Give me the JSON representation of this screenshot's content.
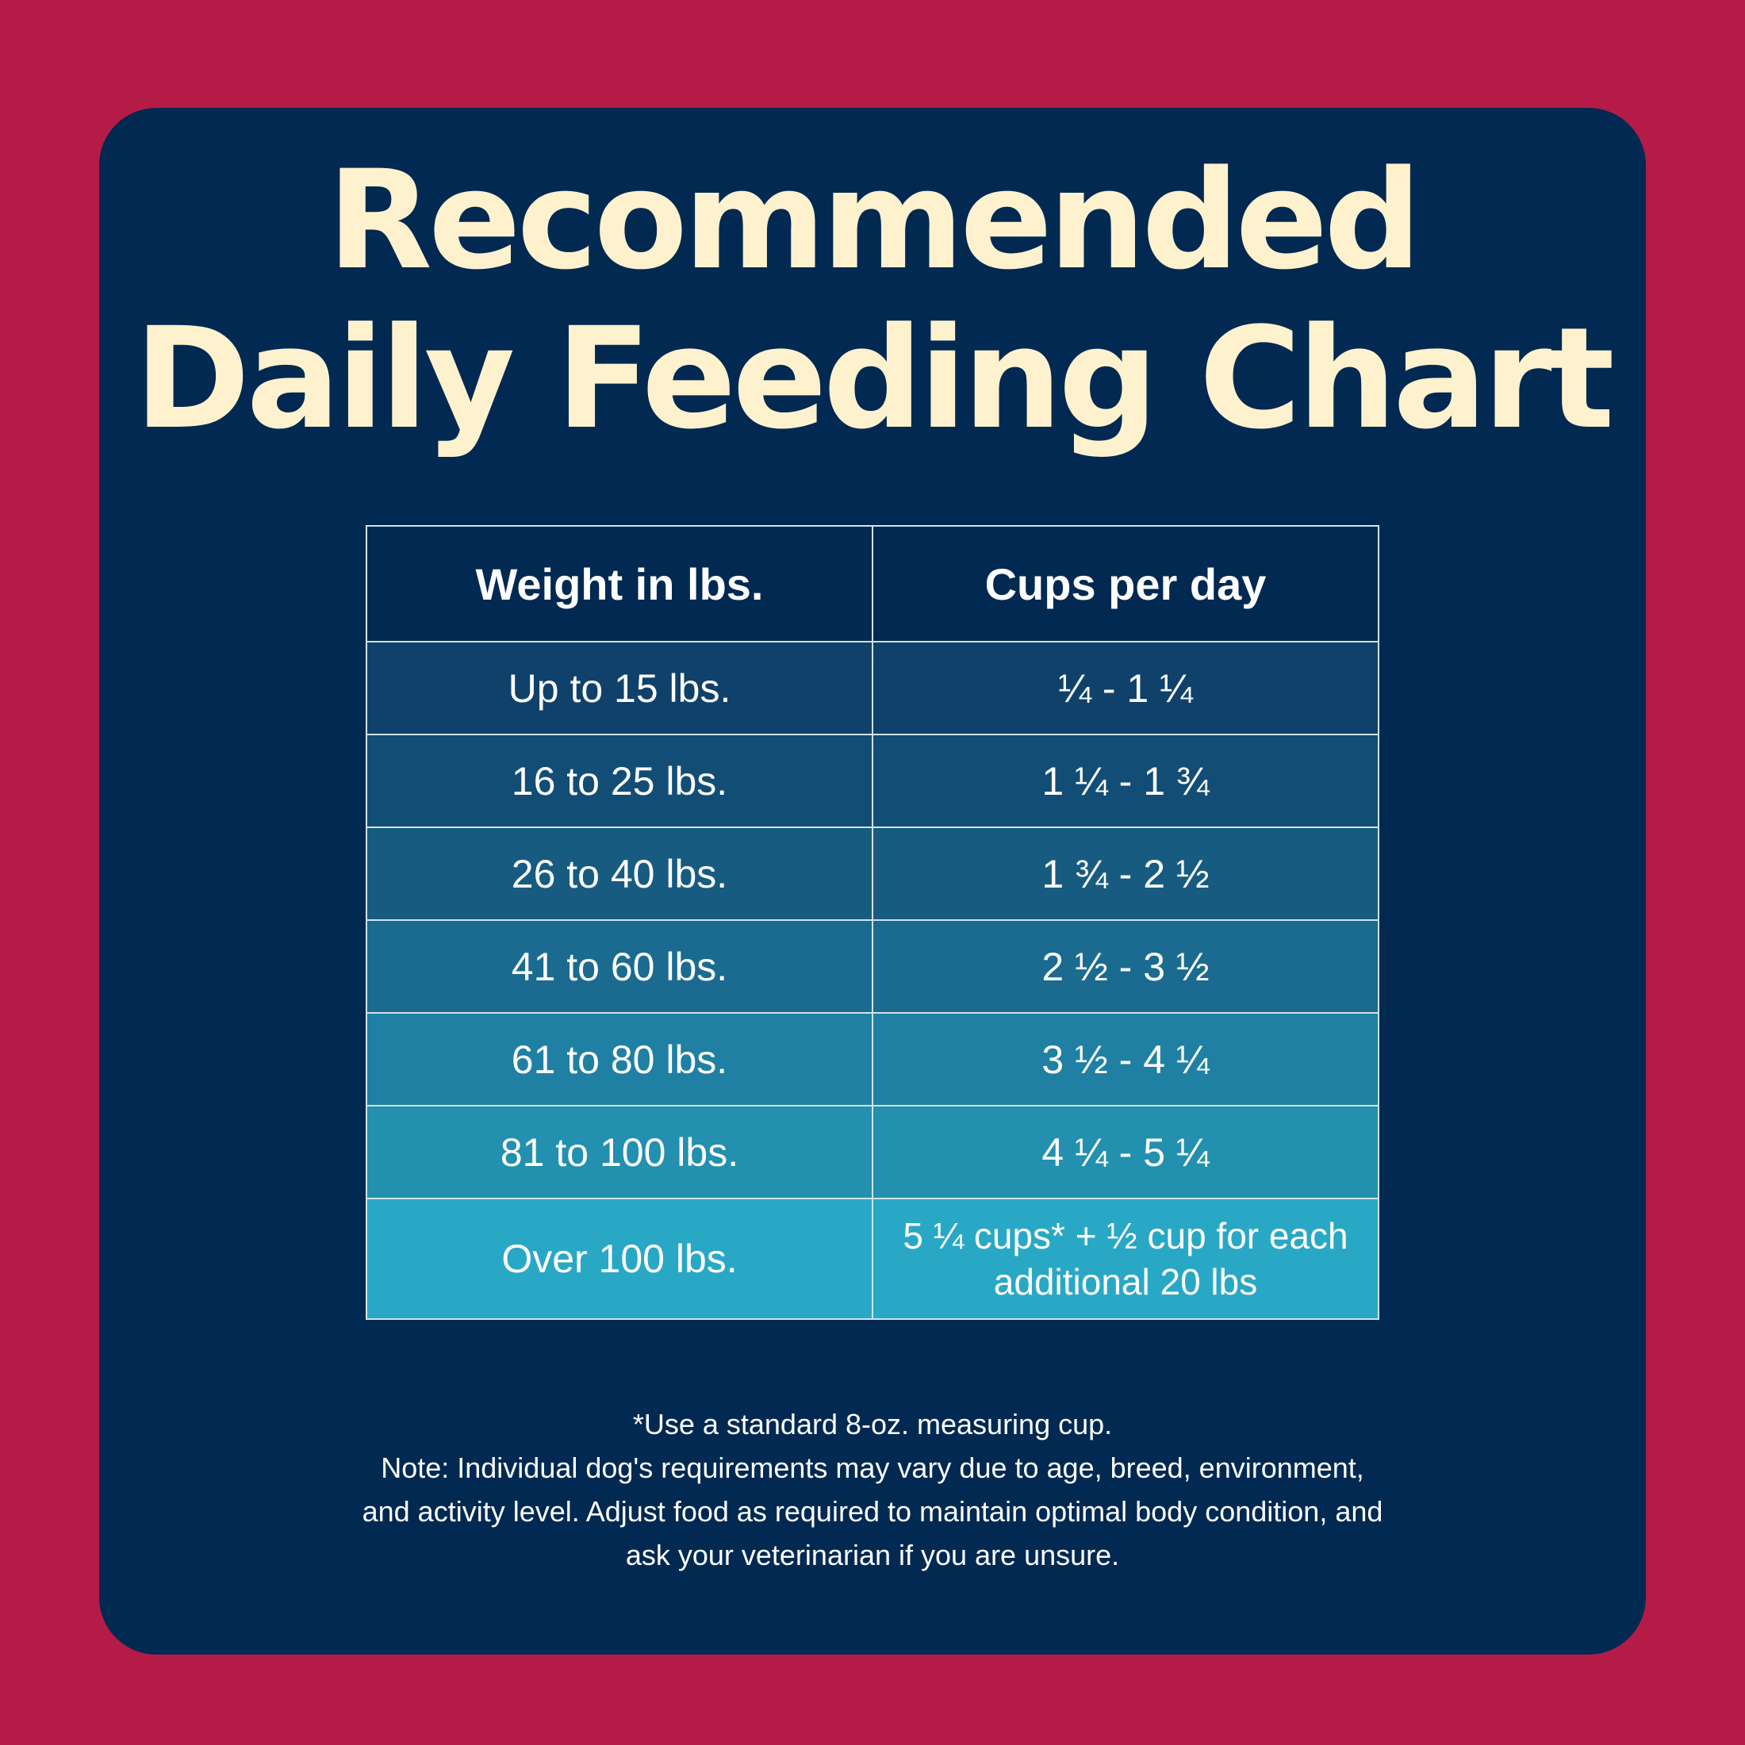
{
  "colors": {
    "page_background": "#b51b47",
    "card_background": "#012952",
    "title_text": "#fdf2cd",
    "table_text": "#ffffff",
    "table_border": "#cfe3ec",
    "header_row": "#012952",
    "row_fills": [
      "#10416a",
      "#124d75",
      "#175c80",
      "#1a6b8f",
      "#1f80a3",
      "#2290ae",
      "#29a8c6"
    ]
  },
  "title": {
    "line1": "Recommended",
    "line2": "Daily Feeding Chart"
  },
  "table": {
    "headers": [
      "Weight in lbs.",
      "Cups per day"
    ],
    "rows": [
      {
        "weight": "Up to 15 lbs.",
        "cups": "¼ - 1 ¼"
      },
      {
        "weight": "16 to 25 lbs.",
        "cups": "1 ¼ - 1 ¾"
      },
      {
        "weight": "26 to 40 lbs.",
        "cups": "1 ¾ - 2 ½"
      },
      {
        "weight": "41 to 60 lbs.",
        "cups": "2 ½ - 3 ½"
      },
      {
        "weight": "61 to 80 lbs.",
        "cups": "3 ½ - 4 ¼"
      },
      {
        "weight": "81 to 100 lbs.",
        "cups": "4 ¼ - 5 ¼"
      },
      {
        "weight": "Over 100 lbs.",
        "cups_line1": "5 ¼ cups* + ½ cup for each",
        "cups_line2": "additional 20 lbs"
      }
    ]
  },
  "footnote": {
    "line1": "*Use a standard 8-oz. measuring cup.",
    "line2": "Note: Individual dog's requirements may vary due to age, breed, environment,",
    "line3": "and activity level. Adjust food as required to maintain optimal body condition, and",
    "line4": "ask your veterinarian if you are unsure."
  }
}
